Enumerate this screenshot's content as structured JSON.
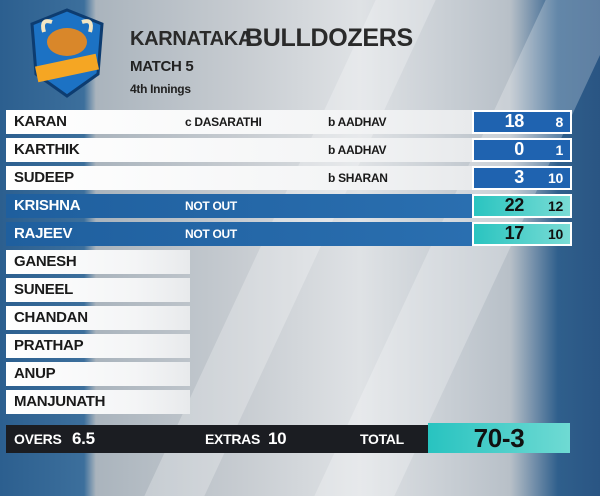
{
  "header": {
    "team_prefix": "KARNATAKA",
    "team_name": "BULLDOZERS",
    "match": "MATCH 5",
    "innings": "4th Innings"
  },
  "batsmen": [
    {
      "name": "KARAN",
      "dismissal": "c DASARATHI",
      "bowler": "b AADHAV",
      "runs": 18,
      "balls": 8
    },
    {
      "name": "KARTHIK",
      "bowler": "b AADHAV",
      "runs": 0,
      "balls": 1
    },
    {
      "name": "SUDEEP",
      "bowler": "b SHARAN",
      "runs": 3,
      "balls": 10
    },
    {
      "name": "KRISHNA",
      "dismissal": "NOT OUT",
      "runs": 22,
      "balls": 12
    },
    {
      "name": "RAJEEV",
      "dismissal": "NOT OUT",
      "runs": 17,
      "balls": 10
    }
  ],
  "yet_to_bat": [
    "GANESH",
    "SUNEEL",
    "CHANDAN",
    "PRATHAP",
    "ANUP",
    "MANJUNATH"
  ],
  "footer": {
    "overs_label": "OVERS",
    "overs": 6.5,
    "extras_label": "EXTRAS",
    "extras": 10,
    "total_label": "TOTAL",
    "total": "70-3"
  }
}
